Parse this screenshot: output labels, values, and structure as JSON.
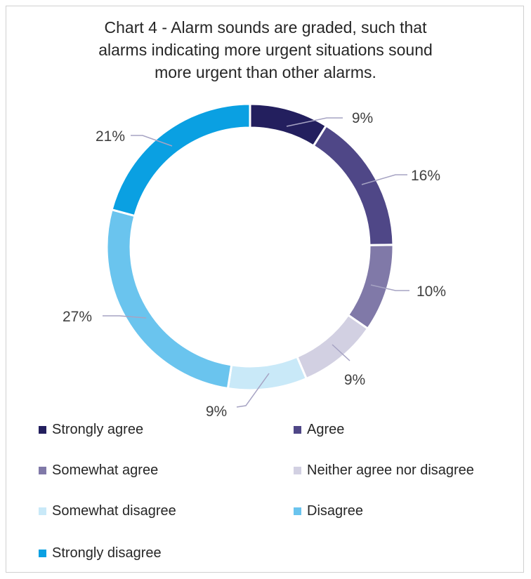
{
  "chart_data": {
    "type": "pie",
    "donut": true,
    "title_lines": [
      "Chart 4 - Alarm sounds are graded, such that",
      "alarms indicating more urgent situations sound",
      "more urgent than other alarms."
    ],
    "categories": [
      "Strongly agree",
      "Agree",
      "Somewhat agree",
      "Neither agree nor disagree",
      "Somewhat disagree",
      "Disagree",
      "Strongly disagree"
    ],
    "values": [
      9,
      16,
      10,
      9,
      9,
      27,
      21
    ],
    "value_labels": [
      "9%",
      "16%",
      "10%",
      "9%",
      "9%",
      "27%",
      "21%"
    ],
    "colors": [
      "#231f5e",
      "#4f4787",
      "#8079a8",
      "#d2d0e2",
      "#c9e9f8",
      "#6ac4ee",
      "#0aa0e2"
    ],
    "legend_placement": "bottom"
  }
}
